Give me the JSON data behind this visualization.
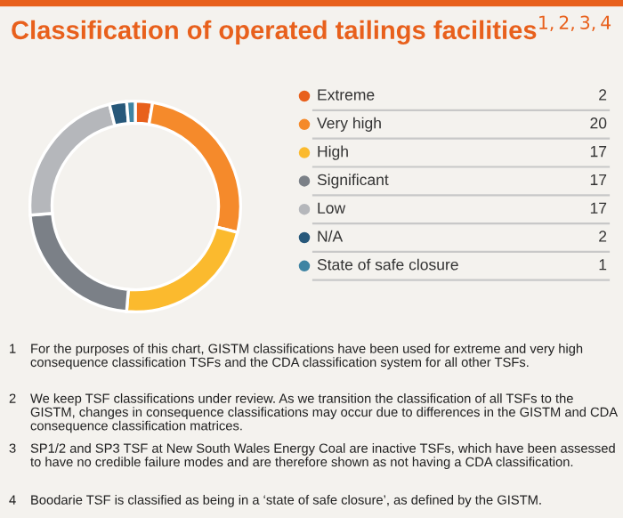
{
  "chart_data": {
    "type": "donut",
    "title": "Classification of operated tailings facilities$^{1,2,3,4}$",
    "categories": [
      "Extreme",
      "Very high",
      "High",
      "Significant",
      "Low",
      "N/A",
      "State of safe closure"
    ],
    "values": [
      2,
      20,
      17,
      17,
      17,
      2,
      1
    ],
    "colors": [
      "#e8601c",
      "#f58a2b",
      "#fbba2e",
      "#7b8087",
      "#b5b7bb",
      "#27587a",
      "#3f84a3"
    ],
    "data_labels": true,
    "legend": "right",
    "annotations": [
      "1 For the purposes of this chart, GISTM classifications have been used for extreme and very high consequence classification TSFs and the CDA classification system for all other TSFs.",
      "2 We keep TSF classifications under review. As we transition the classification of all TSFs to the GISTM, changes in consequence classifications may occur due to differences in the GISTM and CDA consequence classification matrices.",
      "3 SP1/2 and SP3 TSF at New South Wales Energy Coal are inactive TSFs, which have been assessed to have no credible failure modes and are therefore shown as not having a CDA classification.",
      "4 Boodarie TSF is classified as being in a ‘state of safe closure’, as defined by the GISTM."
    ]
  }
}
